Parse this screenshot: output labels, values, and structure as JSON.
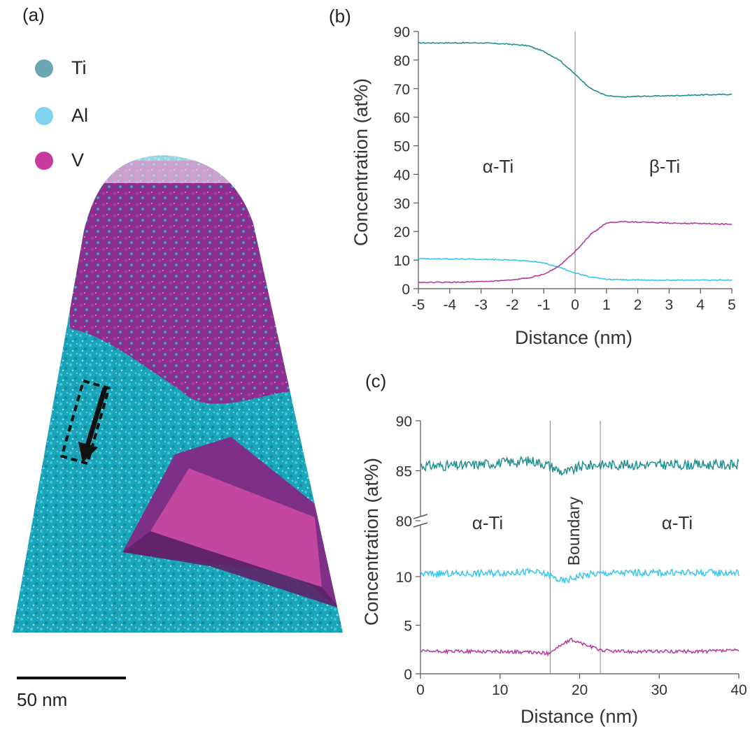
{
  "panel_a": {
    "label": "(a)",
    "legend": [
      {
        "name": "Ti",
        "color": "#6aa7b3"
      },
      {
        "name": "Al",
        "color": "#7fd3ef"
      },
      {
        "name": "V",
        "color": "#c93a9c"
      }
    ],
    "scale_label": "50 nm",
    "colors": {
      "ti": "#1aaabb",
      "al": "#22c0e0",
      "v": "#8a2f8e",
      "v_bright": "#c2419f"
    }
  },
  "chart_data": [
    {
      "panel": "(b)",
      "type": "line",
      "xlabel": "Distance (nm)",
      "ylabel": "Concentration (at%)",
      "xlim": [
        -5,
        5
      ],
      "ylim": [
        0,
        90
      ],
      "xticks": [
        -5,
        -4,
        -3,
        -2,
        -1,
        0,
        1,
        2,
        3,
        4,
        5
      ],
      "yticks": [
        0,
        10,
        20,
        30,
        40,
        50,
        60,
        70,
        80,
        90
      ],
      "vline": 0,
      "annotations": [
        "α-Ti",
        "β-Ti"
      ],
      "series": [
        {
          "color": "#1f8f8f",
          "x": [
            -5,
            -4,
            -3,
            -2,
            -1.5,
            -1,
            -0.5,
            0,
            0.5,
            1,
            1.5,
            2,
            3,
            4,
            5
          ],
          "values": [
            86,
            86,
            86,
            85.5,
            85,
            83,
            80,
            75,
            70,
            67.5,
            67,
            67.3,
            67.5,
            67.8,
            68
          ]
        },
        {
          "color": "#38c6ef",
          "x": [
            -5,
            -4,
            -3,
            -2,
            -1.5,
            -1,
            -0.5,
            0,
            0.5,
            1,
            2,
            3,
            4,
            5
          ],
          "values": [
            10.5,
            10.4,
            10.3,
            10,
            9.7,
            9,
            7.5,
            5.5,
            4,
            3.3,
            3,
            3,
            3,
            3
          ]
        },
        {
          "color": "#b53a9e",
          "x": [
            -5,
            -4,
            -3,
            -2,
            -1.5,
            -1,
            -0.5,
            0,
            0.5,
            1,
            1.5,
            2,
            3,
            4,
            5
          ],
          "values": [
            2.2,
            2.2,
            2.4,
            3,
            3.8,
            5,
            8,
            13,
            19,
            23,
            23.5,
            23.3,
            23,
            22.8,
            22.5
          ]
        }
      ]
    },
    {
      "panel": "(c)",
      "type": "line",
      "xlabel": "Distance (nm)",
      "ylabel": "Concentration (at%)",
      "xlim": [
        0,
        40
      ],
      "xticks": [
        0,
        10,
        20,
        30,
        40
      ],
      "yticks_lower": [
        0,
        5,
        10
      ],
      "yticks_upper": [
        80,
        85,
        90
      ],
      "axis_break": "between 10 and 80",
      "vlines": [
        16.3,
        22.6
      ],
      "annotations": [
        "α-Ti",
        "Boundary",
        "α-Ti"
      ],
      "series": [
        {
          "color": "#1f8f8f",
          "x": [
            0,
            5,
            10,
            14,
            16,
            17,
            18,
            19,
            20,
            22,
            25,
            30,
            35,
            40
          ],
          "values": [
            85.5,
            85.5,
            85.8,
            86,
            85.6,
            85.2,
            84.8,
            85,
            85.4,
            85.6,
            85.6,
            85.6,
            85.6,
            85.6
          ]
        },
        {
          "color": "#38c6ef",
          "x": [
            0,
            5,
            10,
            14,
            16,
            17,
            18,
            19,
            20,
            22,
            25,
            30,
            35,
            40
          ],
          "values": [
            10.3,
            10.3,
            10.4,
            10.5,
            10.2,
            9.8,
            9.5,
            9.8,
            10.1,
            10.3,
            10.4,
            10.4,
            10.4,
            10.4
          ]
        },
        {
          "color": "#b53a9e",
          "x": [
            0,
            5,
            10,
            14,
            16,
            17,
            18,
            19,
            20,
            21,
            22,
            23,
            25,
            30,
            35,
            40
          ],
          "values": [
            2.3,
            2.3,
            2.3,
            2.2,
            2.1,
            2.6,
            3.1,
            3.5,
            3.2,
            2.9,
            2.6,
            2.4,
            2.3,
            2.3,
            2.3,
            2.4
          ]
        }
      ]
    }
  ]
}
